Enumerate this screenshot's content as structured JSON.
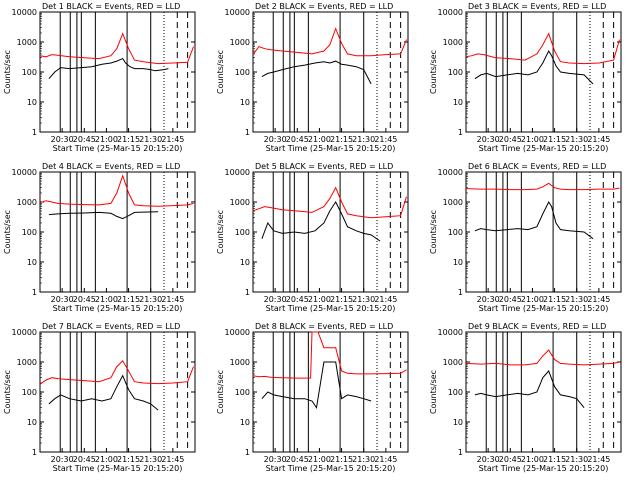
{
  "figure": {
    "common": {
      "ylabel": "Counts/sec",
      "xlabel": "Start Time (25-Mar-15 20:15:20)",
      "title_suffix": " BLACK = Events, RED = LLD",
      "yticks": [
        "1",
        "10",
        "100",
        "1000",
        "10000"
      ],
      "xticks": [
        "20:30",
        "20:45",
        "21:00",
        "21:15",
        "21:30",
        "21:45"
      ],
      "colors": {
        "events": "#000000",
        "lld": "#ff0000",
        "axes": "#000000"
      }
    }
  },
  "chart_data": [
    {
      "type": "line",
      "title": "Det 1",
      "xlabel": "Start Time (25-Mar-15 20:15:20)",
      "ylabel": "Counts/sec",
      "ylim": [
        1,
        10000
      ],
      "yscale": "log",
      "xlim_minutes": [
        0,
        105
      ],
      "series": [
        {
          "name": "BLACK = Events",
          "x": [
            6,
            10,
            14,
            20,
            28,
            35,
            42,
            48,
            52,
            56,
            58,
            61,
            64,
            70,
            75,
            78,
            84,
            87
          ],
          "y": [
            60,
            100,
            140,
            130,
            140,
            150,
            180,
            200,
            230,
            280,
            200,
            150,
            130,
            130,
            120,
            110,
            120,
            130
          ]
        },
        {
          "name": "RED = LLD",
          "x": [
            0,
            4,
            8,
            12,
            20,
            30,
            40,
            48,
            52,
            56,
            60,
            64,
            70,
            80,
            90,
            100,
            104
          ],
          "y": [
            350,
            320,
            380,
            360,
            320,
            300,
            280,
            350,
            600,
            1900,
            600,
            250,
            220,
            190,
            200,
            210,
            700
          ]
        }
      ],
      "vlines": {
        "solid": [
          13.7,
          20.5,
          25,
          28,
          37.5,
          59,
          75
        ],
        "dotted": [
          84
        ],
        "dashed": [
          93,
          100
        ]
      }
    },
    {
      "type": "line",
      "title": "Det 2",
      "xlabel": "Start Time (25-Mar-15 20:15:20)",
      "ylabel": "Counts/sec",
      "ylim": [
        1,
        10000
      ],
      "yscale": "log",
      "xlim_minutes": [
        0,
        105
      ],
      "series": [
        {
          "name": "BLACK = Events",
          "x": [
            6,
            10,
            14,
            20,
            28,
            35,
            42,
            48,
            52,
            56,
            60,
            64,
            70,
            75,
            80
          ],
          "y": [
            70,
            90,
            100,
            120,
            150,
            170,
            200,
            220,
            200,
            230,
            180,
            170,
            150,
            120,
            40
          ]
        },
        {
          "name": "RED = LLD",
          "x": [
            0,
            4,
            8,
            12,
            20,
            30,
            40,
            48,
            52,
            56,
            60,
            64,
            70,
            80,
            90,
            100,
            104
          ],
          "y": [
            380,
            700,
            600,
            550,
            500,
            450,
            400,
            500,
            800,
            2800,
            900,
            400,
            350,
            350,
            380,
            400,
            1200
          ]
        }
      ],
      "vlines": {
        "solid": [
          13.7,
          20.5,
          25,
          28,
          37.5,
          59,
          75
        ],
        "dotted": [
          84
        ],
        "dashed": [
          93,
          100
        ]
      }
    },
    {
      "type": "line",
      "title": "Det 3",
      "xlabel": "Start Time (25-Mar-15 20:15:20)",
      "ylabel": "Counts/sec",
      "ylim": [
        1,
        10000
      ],
      "yscale": "log",
      "xlim_minutes": [
        0,
        105
      ],
      "series": [
        {
          "name": "BLACK = Events",
          "x": [
            6,
            10,
            14,
            20,
            28,
            35,
            42,
            48,
            52,
            56,
            58,
            61,
            64,
            70,
            80,
            86
          ],
          "y": [
            60,
            80,
            90,
            70,
            80,
            90,
            80,
            100,
            200,
            500,
            350,
            160,
            100,
            90,
            80,
            40
          ]
        },
        {
          "name": "RED = LLD",
          "x": [
            0,
            4,
            8,
            12,
            20,
            30,
            40,
            48,
            52,
            56,
            60,
            64,
            70,
            80,
            90,
            100,
            104
          ],
          "y": [
            320,
            350,
            400,
            380,
            300,
            280,
            250,
            400,
            800,
            1900,
            500,
            220,
            200,
            190,
            200,
            250,
            1200
          ]
        }
      ],
      "vlines": {
        "solid": [
          13.7,
          20.5,
          25,
          28,
          37.5,
          59,
          75
        ],
        "dotted": [
          84
        ],
        "dashed": [
          93,
          100
        ]
      }
    },
    {
      "type": "line",
      "title": "Det 4",
      "xlabel": "Start Time (25-Mar-15 20:15:20)",
      "ylabel": "Counts/sec",
      "ylim": [
        1,
        10000
      ],
      "yscale": "log",
      "xlim_minutes": [
        0,
        105
      ],
      "series": [
        {
          "name": "BLACK = Events",
          "x": [
            6,
            12,
            20,
            30,
            40,
            48,
            52,
            56,
            60,
            64,
            70,
            80
          ],
          "y": [
            380,
            400,
            420,
            430,
            450,
            420,
            330,
            280,
            350,
            450,
            460,
            470
          ]
        },
        {
          "name": "RED = LLD",
          "x": [
            0,
            4,
            8,
            12,
            20,
            30,
            40,
            48,
            52,
            56,
            60,
            64,
            70,
            80,
            90,
            100,
            104
          ],
          "y": [
            950,
            1100,
            1000,
            900,
            850,
            820,
            800,
            900,
            2000,
            7500,
            2000,
            800,
            750,
            720,
            760,
            800,
            900
          ]
        }
      ],
      "vlines": {
        "solid": [
          13.7,
          20.5,
          25,
          28,
          37.5,
          59,
          75
        ],
        "dotted": [
          84
        ],
        "dashed": [
          93,
          100
        ]
      }
    },
    {
      "type": "line",
      "title": "Det 5",
      "xlabel": "Start Time (25-Mar-15 20:15:20)",
      "ylabel": "Counts/sec",
      "ylim": [
        1,
        10000
      ],
      "yscale": "log",
      "xlim_minutes": [
        0,
        105
      ],
      "series": [
        {
          "name": "BLACK = Events",
          "x": [
            6,
            10,
            14,
            20,
            28,
            35,
            42,
            48,
            52,
            56,
            60,
            64,
            70,
            75,
            80,
            86
          ],
          "y": [
            60,
            200,
            110,
            90,
            100,
            90,
            110,
            200,
            500,
            1000,
            400,
            150,
            110,
            90,
            80,
            50
          ]
        },
        {
          "name": "RED = LLD",
          "x": [
            0,
            4,
            8,
            12,
            20,
            30,
            40,
            48,
            52,
            56,
            60,
            64,
            70,
            80,
            90,
            100,
            104
          ],
          "y": [
            500,
            600,
            700,
            650,
            550,
            500,
            450,
            700,
            1300,
            3000,
            1000,
            400,
            350,
            300,
            320,
            350,
            1500
          ]
        }
      ],
      "vlines": {
        "solid": [
          13.7,
          20.5,
          25,
          28,
          37.5,
          59,
          75
        ],
        "dotted": [
          84
        ],
        "dashed": [
          93,
          100
        ]
      }
    },
    {
      "type": "line",
      "title": "Det 6",
      "xlabel": "Start Time (25-Mar-15 20:15:20)",
      "ylabel": "Counts/sec",
      "ylim": [
        1,
        10000
      ],
      "yscale": "log",
      "xlim_minutes": [
        0,
        105
      ],
      "series": [
        {
          "name": "BLACK = Events",
          "x": [
            6,
            10,
            14,
            20,
            28,
            35,
            42,
            48,
            52,
            56,
            58,
            61,
            64,
            70,
            80,
            86
          ],
          "y": [
            110,
            130,
            120,
            110,
            120,
            130,
            120,
            150,
            400,
            1000,
            700,
            200,
            120,
            110,
            100,
            60
          ]
        },
        {
          "name": "RED = LLD",
          "x": [
            0,
            10,
            20,
            30,
            40,
            48,
            52,
            56,
            60,
            64,
            70,
            80,
            90,
            100,
            104
          ],
          "y": [
            2800,
            2700,
            2700,
            2600,
            2600,
            2700,
            3200,
            4200,
            3000,
            2700,
            2600,
            2600,
            2700,
            2700,
            2900
          ]
        }
      ],
      "vlines": {
        "solid": [
          13.7,
          20.5,
          25,
          28,
          37.5,
          59,
          75
        ],
        "dotted": [
          84
        ],
        "dashed": [
          93,
          100
        ]
      }
    },
    {
      "type": "line",
      "title": "Det 7",
      "xlabel": "Start Time (25-Mar-15 20:15:20)",
      "ylabel": "Counts/sec",
      "ylim": [
        1,
        10000
      ],
      "yscale": "log",
      "xlim_minutes": [
        0,
        105
      ],
      "series": [
        {
          "name": "BLACK = Events",
          "x": [
            6,
            10,
            14,
            20,
            28,
            35,
            42,
            48,
            52,
            56,
            60,
            64,
            70,
            75,
            80
          ],
          "y": [
            40,
            60,
            80,
            60,
            50,
            60,
            50,
            60,
            150,
            350,
            120,
            60,
            50,
            40,
            25
          ]
        },
        {
          "name": "RED = LLD",
          "x": [
            0,
            4,
            8,
            12,
            20,
            30,
            40,
            48,
            52,
            56,
            60,
            64,
            70,
            80,
            90,
            100,
            104
          ],
          "y": [
            180,
            250,
            300,
            280,
            260,
            240,
            220,
            300,
            700,
            1100,
            500,
            220,
            200,
            190,
            200,
            220,
            700
          ]
        }
      ],
      "vlines": {
        "solid": [
          13.7,
          20.5,
          25,
          28,
          37.5,
          59,
          75
        ],
        "dotted": [
          84
        ],
        "dashed": [
          93,
          100
        ]
      }
    },
    {
      "type": "line",
      "title": "Det 8",
      "xlabel": "Start Time (25-Mar-15 20:15:20)",
      "ylabel": "Counts/sec",
      "ylim": [
        1,
        10000
      ],
      "yscale": "log",
      "xlim_minutes": [
        0,
        105
      ],
      "series": [
        {
          "name": "BLACK = Events",
          "x": [
            6,
            10,
            14,
            20,
            28,
            35,
            40,
            43,
            48,
            56,
            60,
            64,
            70,
            75,
            80
          ],
          "y": [
            60,
            100,
            80,
            70,
            60,
            60,
            50,
            30,
            1000,
            1000,
            60,
            80,
            70,
            60,
            50
          ]
        },
        {
          "name": "RED = LLD",
          "x": [
            0,
            4,
            8,
            12,
            20,
            30,
            39,
            40,
            44,
            48,
            56,
            60,
            64,
            70,
            80,
            90,
            100,
            104
          ],
          "y": [
            350,
            320,
            330,
            310,
            300,
            290,
            290,
            10000,
            10000,
            3000,
            3000,
            500,
            420,
            400,
            400,
            410,
            420,
            550
          ]
        }
      ],
      "vlines": {
        "solid": [
          13.7,
          20.5,
          25,
          28,
          37.5,
          59,
          75
        ],
        "dotted": [
          84
        ],
        "dashed": [
          93,
          100
        ]
      }
    },
    {
      "type": "line",
      "title": "Det 9",
      "xlabel": "Start Time (25-Mar-15 20:15:20)",
      "ylabel": "Counts/sec",
      "ylim": [
        1,
        10000
      ],
      "yscale": "log",
      "xlim_minutes": [
        0,
        105
      ],
      "series": [
        {
          "name": "BLACK = Events",
          "x": [
            6,
            10,
            14,
            20,
            28,
            35,
            42,
            48,
            52,
            56,
            60,
            64,
            70,
            75,
            80
          ],
          "y": [
            80,
            90,
            80,
            70,
            80,
            90,
            80,
            100,
            300,
            500,
            150,
            80,
            70,
            60,
            30
          ]
        },
        {
          "name": "RED = LLD",
          "x": [
            0,
            10,
            20,
            30,
            40,
            48,
            52,
            56,
            60,
            64,
            70,
            80,
            90,
            100,
            104
          ],
          "y": [
            900,
            850,
            900,
            800,
            800,
            900,
            1600,
            2500,
            1200,
            900,
            850,
            800,
            850,
            900,
            1000
          ]
        }
      ],
      "vlines": {
        "solid": [
          13.7,
          20.5,
          25,
          28,
          37.5,
          59,
          75
        ],
        "dotted": [
          84
        ],
        "dashed": [
          93,
          100
        ]
      }
    }
  ]
}
